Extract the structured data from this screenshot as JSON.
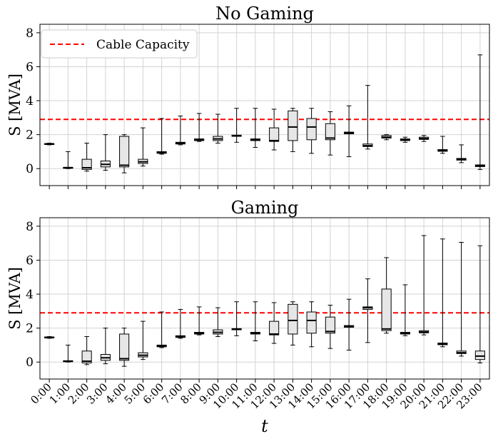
{
  "chart_data": [
    {
      "type": "box",
      "title": "No Gaming",
      "ylabel": "S [MVA]",
      "xlabel": "",
      "ylim": [
        -1,
        8.5
      ],
      "yticks": [
        "0",
        "2",
        "4",
        "6",
        "8"
      ],
      "grid": true,
      "legend": {
        "label": "Cable Capacity",
        "placement": "top-left"
      },
      "capacity": 2.9,
      "categories": [
        "0:00",
        "1:00",
        "2:00",
        "3:00",
        "4:00",
        "5:00",
        "6:00",
        "7:00",
        "8:00",
        "9:00",
        "10:00",
        "11:00",
        "12:00",
        "13:00",
        "14:00",
        "15:00",
        "16:00",
        "17:00",
        "18:00",
        "19:00",
        "20:00",
        "21:00",
        "22:00",
        "23:00"
      ],
      "boxes": [
        {
          "min": 1.4,
          "q1": 1.42,
          "median": 1.45,
          "q3": 1.48,
          "max": 1.5
        },
        {
          "min": 0.0,
          "q1": 0.02,
          "median": 0.05,
          "q3": 0.08,
          "max": 1.0
        },
        {
          "min": -0.15,
          "q1": -0.05,
          "median": 0.05,
          "q3": 0.55,
          "max": 1.5
        },
        {
          "min": -0.1,
          "q1": 0.1,
          "median": 0.25,
          "q3": 0.45,
          "max": 2.0
        },
        {
          "min": -0.25,
          "q1": 0.1,
          "median": 0.2,
          "q3": 1.9,
          "max": 2.0
        },
        {
          "min": 0.15,
          "q1": 0.3,
          "median": 0.4,
          "q3": 0.55,
          "max": 2.4
        },
        {
          "min": 0.85,
          "q1": 0.9,
          "median": 0.95,
          "q3": 1.0,
          "max": 2.95
        },
        {
          "min": 1.4,
          "q1": 1.45,
          "median": 1.5,
          "q3": 1.55,
          "max": 3.1
        },
        {
          "min": 1.6,
          "q1": 1.65,
          "median": 1.7,
          "q3": 1.75,
          "max": 3.25
        },
        {
          "min": 1.5,
          "q1": 1.65,
          "median": 1.75,
          "q3": 1.9,
          "max": 3.2
        },
        {
          "min": 1.55,
          "q1": 1.9,
          "median": 1.93,
          "q3": 1.97,
          "max": 3.55
        },
        {
          "min": 1.25,
          "q1": 1.65,
          "median": 1.7,
          "q3": 1.75,
          "max": 3.55
        },
        {
          "min": 1.1,
          "q1": 1.6,
          "median": 1.65,
          "q3": 2.4,
          "max": 3.5
        },
        {
          "min": 1.0,
          "q1": 1.65,
          "median": 2.45,
          "q3": 3.4,
          "max": 3.55
        },
        {
          "min": 0.9,
          "q1": 1.7,
          "median": 2.45,
          "q3": 2.95,
          "max": 3.55
        },
        {
          "min": 0.8,
          "q1": 1.7,
          "median": 1.8,
          "q3": 2.65,
          "max": 3.35
        },
        {
          "min": 0.7,
          "q1": 2.05,
          "median": 2.1,
          "q3": 2.15,
          "max": 3.7
        },
        {
          "min": 1.15,
          "q1": 1.3,
          "median": 1.35,
          "q3": 1.45,
          "max": 4.9
        },
        {
          "min": 1.7,
          "q1": 1.8,
          "median": 1.85,
          "q3": 1.95,
          "max": 2.0
        },
        {
          "min": 1.55,
          "q1": 1.65,
          "median": 1.7,
          "q3": 1.75,
          "max": 1.85
        },
        {
          "min": 1.6,
          "q1": 1.72,
          "median": 1.77,
          "q3": 1.85,
          "max": 1.95
        },
        {
          "min": 0.9,
          "q1": 1.02,
          "median": 1.07,
          "q3": 1.12,
          "max": 1.9
        },
        {
          "min": 0.35,
          "q1": 0.5,
          "median": 0.55,
          "q3": 0.6,
          "max": 1.4
        },
        {
          "min": -0.05,
          "q1": 0.12,
          "median": 0.17,
          "q3": 0.22,
          "max": 6.7
        }
      ]
    },
    {
      "type": "box",
      "title": "Gaming",
      "ylabel": "S [MVA]",
      "xlabel": "t",
      "ylim": [
        -1,
        8.5
      ],
      "yticks": [
        "0",
        "2",
        "4",
        "6",
        "8"
      ],
      "grid": true,
      "capacity": 2.9,
      "categories": [
        "0:00",
        "1:00",
        "2:00",
        "3:00",
        "4:00",
        "5:00",
        "6:00",
        "7:00",
        "8:00",
        "9:00",
        "10:00",
        "11:00",
        "12:00",
        "13:00",
        "14:00",
        "15:00",
        "16:00",
        "17:00",
        "18:00",
        "19:00",
        "20:00",
        "21:00",
        "22:00",
        "23:00"
      ],
      "boxes": [
        {
          "min": 1.4,
          "q1": 1.42,
          "median": 1.45,
          "q3": 1.48,
          "max": 1.5
        },
        {
          "min": 0.0,
          "q1": 0.02,
          "median": 0.05,
          "q3": 0.08,
          "max": 1.0
        },
        {
          "min": -0.15,
          "q1": -0.05,
          "median": 0.05,
          "q3": 0.65,
          "max": 1.5
        },
        {
          "min": -0.1,
          "q1": 0.1,
          "median": 0.25,
          "q3": 0.45,
          "max": 2.0
        },
        {
          "min": -0.25,
          "q1": 0.1,
          "median": 0.2,
          "q3": 1.65,
          "max": 2.0
        },
        {
          "min": 0.15,
          "q1": 0.3,
          "median": 0.4,
          "q3": 0.55,
          "max": 2.4
        },
        {
          "min": 0.85,
          "q1": 0.9,
          "median": 0.95,
          "q3": 1.0,
          "max": 2.95
        },
        {
          "min": 1.4,
          "q1": 1.45,
          "median": 1.5,
          "q3": 1.55,
          "max": 3.1
        },
        {
          "min": 1.6,
          "q1": 1.65,
          "median": 1.7,
          "q3": 1.75,
          "max": 3.25
        },
        {
          "min": 1.5,
          "q1": 1.65,
          "median": 1.75,
          "q3": 1.9,
          "max": 3.2
        },
        {
          "min": 1.55,
          "q1": 1.9,
          "median": 1.93,
          "q3": 1.97,
          "max": 3.55
        },
        {
          "min": 1.25,
          "q1": 1.65,
          "median": 1.7,
          "q3": 1.75,
          "max": 3.55
        },
        {
          "min": 1.1,
          "q1": 1.6,
          "median": 1.65,
          "q3": 2.4,
          "max": 3.5
        },
        {
          "min": 1.0,
          "q1": 1.65,
          "median": 2.45,
          "q3": 3.4,
          "max": 3.55
        },
        {
          "min": 0.9,
          "q1": 1.7,
          "median": 2.45,
          "q3": 2.95,
          "max": 3.55
        },
        {
          "min": 0.8,
          "q1": 1.7,
          "median": 1.8,
          "q3": 2.65,
          "max": 3.35
        },
        {
          "min": 0.7,
          "q1": 2.05,
          "median": 2.1,
          "q3": 2.15,
          "max": 3.7
        },
        {
          "min": 1.15,
          "q1": 3.1,
          "median": 3.2,
          "q3": 3.25,
          "max": 4.9
        },
        {
          "min": 1.7,
          "q1": 1.85,
          "median": 1.95,
          "q3": 4.3,
          "max": 6.15
        },
        {
          "min": 1.55,
          "q1": 1.65,
          "median": 1.7,
          "q3": 1.75,
          "max": 4.55
        },
        {
          "min": 1.6,
          "q1": 1.72,
          "median": 1.77,
          "q3": 1.85,
          "max": 7.45
        },
        {
          "min": 0.9,
          "q1": 1.02,
          "median": 1.07,
          "q3": 1.12,
          "max": 7.25
        },
        {
          "min": 0.35,
          "q1": 0.5,
          "median": 0.55,
          "q3": 0.65,
          "max": 7.05
        },
        {
          "min": -0.05,
          "q1": 0.15,
          "median": 0.35,
          "q3": 0.65,
          "max": 6.85
        }
      ]
    }
  ],
  "colors": {
    "box_fill": "#e6e6e6",
    "capacity_line": "#ff0000",
    "grid": "#d3d3d3"
  }
}
